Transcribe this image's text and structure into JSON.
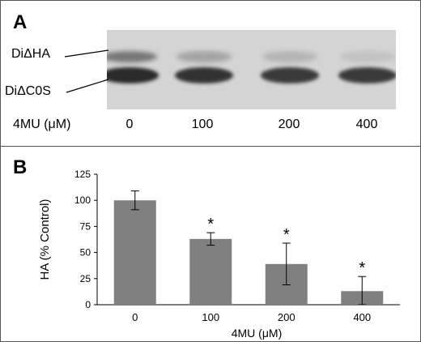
{
  "panel_a": {
    "label": "A",
    "band_labels": {
      "top": "DiΔHA",
      "bottom": "DiΔC0S"
    },
    "concentration_title": "4MU (μM)",
    "lanes": [
      "0",
      "100",
      "200",
      "400"
    ],
    "band_color": "#2a2a2a",
    "background_color": "#d4d4d4"
  },
  "panel_b": {
    "label": "B"
  },
  "chart_data": {
    "type": "bar",
    "categories": [
      "0",
      "100",
      "200",
      "400"
    ],
    "values": [
      100,
      63,
      39,
      13
    ],
    "error": [
      9,
      6,
      20,
      14
    ],
    "significance": [
      "",
      "*",
      "*",
      "*"
    ],
    "title": "",
    "xlabel": "4MU (μM)",
    "ylabel": "HA    (% Control)",
    "ylim": [
      0,
      125
    ],
    "yticks": [
      0,
      25,
      50,
      75,
      100,
      125
    ],
    "grid": false,
    "bar_color": "#808080"
  }
}
